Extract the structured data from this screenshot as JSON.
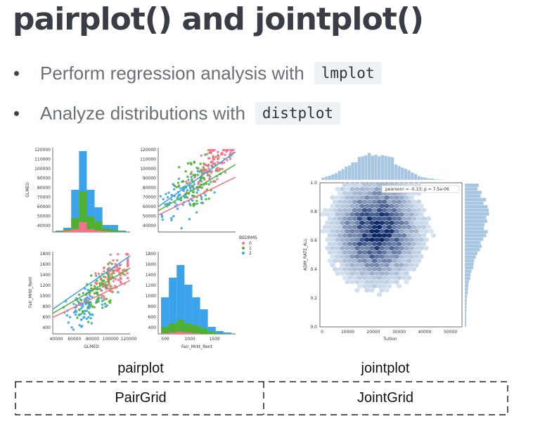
{
  "title": "pairplot() and jointplot()",
  "bullets": [
    {
      "text": "Perform regression analysis with",
      "code": "lmplot"
    },
    {
      "text": "Analyze distributions with",
      "code": "distplot"
    }
  ],
  "pairplot": {
    "ylabel_top": "GLMED",
    "ylabel_bottom": "Fair_Mrkt_Rent",
    "xlabel_left": "GLMED",
    "xlabel_right": "Fair_Mrkt_Rent",
    "glmed_yticks": [
      "120000",
      "110000",
      "100000",
      "90000",
      "80000",
      "70000",
      "60000",
      "50000",
      "40000"
    ],
    "rent_yticks": [
      "1800",
      "1600",
      "1400",
      "1200",
      "1000",
      "800",
      "600",
      "400"
    ],
    "glmed_xticks": [
      "40000",
      "60000",
      "80000",
      "100000",
      "120000"
    ],
    "rent_xticks": [
      "500",
      "1000",
      "1500"
    ],
    "legend": {
      "title": "BEDRMS",
      "items": [
        "0",
        "1",
        "2"
      ]
    }
  },
  "jointplot": {
    "xlabel": "Tuition",
    "ylabel": "ADM_RATE_ALL",
    "xticks": [
      "0",
      "10000",
      "20000",
      "30000",
      "40000",
      "50000"
    ],
    "yticks": [
      "0.0",
      "0.2",
      "0.4",
      "0.6",
      "0.8",
      "1.0"
    ],
    "annotation": "pearsonr = -0.13; p = 7.5e-06"
  },
  "captions": {
    "pairplot": "pairplot",
    "jointplot": "jointplot"
  },
  "grids": {
    "pair": "PairGrid",
    "joint": "JointGrid"
  }
}
